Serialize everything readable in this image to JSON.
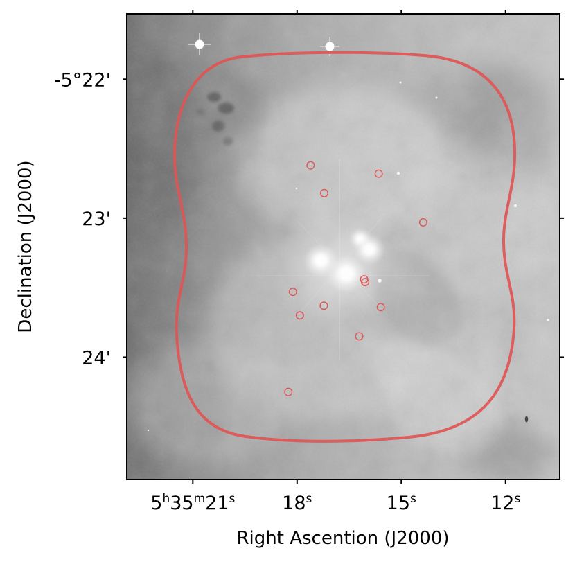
{
  "chart_data": {
    "type": "scatter",
    "background": "grayscale astronomical image (nebula with bright central stars)",
    "xlabel": "Right Ascention (J2000)",
    "ylabel": "Declination (J2000)",
    "x_unit": "seconds of right ascension (5h35m + s)",
    "y_unit": "arcminutes of declination (-5°Xm)",
    "xlim": [
      22.9,
      10.44
    ],
    "ylim": [
      24.88,
      21.53
    ],
    "x_ticks": [
      {
        "value": 21,
        "label_main": "5",
        "sup_h": "h",
        "label_m": "35",
        "sup_m": "m",
        "label_s": "21",
        "sup_s": "s"
      },
      {
        "value": 18,
        "label_main": "18",
        "sup_s": "s"
      },
      {
        "value": 15,
        "label_main": "15",
        "sup_s": "s"
      },
      {
        "value": 12,
        "label_main": "12",
        "sup_s": "s"
      }
    ],
    "y_ticks": [
      {
        "value": 22,
        "label": "-5°22'"
      },
      {
        "value": 23,
        "label": "23'"
      },
      {
        "value": 24,
        "label": "24'"
      }
    ],
    "contour": {
      "color": "#e05454",
      "style": "red rounded coverage boundary"
    },
    "points": [
      {
        "ra_s": 17.61,
        "dec_arcmin": 22.62
      },
      {
        "ra_s": 15.65,
        "dec_arcmin": 22.68
      },
      {
        "ra_s": 17.22,
        "dec_arcmin": 22.82
      },
      {
        "ra_s": 14.37,
        "dec_arcmin": 23.03
      },
      {
        "ra_s": 16.07,
        "dec_arcmin": 23.44
      },
      {
        "ra_s": 16.04,
        "dec_arcmin": 23.46
      },
      {
        "ra_s": 18.12,
        "dec_arcmin": 23.53
      },
      {
        "ra_s": 17.23,
        "dec_arcmin": 23.63
      },
      {
        "ra_s": 15.59,
        "dec_arcmin": 23.64
      },
      {
        "ra_s": 17.92,
        "dec_arcmin": 23.7
      },
      {
        "ra_s": 16.21,
        "dec_arcmin": 23.85
      },
      {
        "ra_s": 18.25,
        "dec_arcmin": 24.25
      }
    ],
    "point_style": {
      "marker": "open circle",
      "color": "#e05454"
    }
  }
}
